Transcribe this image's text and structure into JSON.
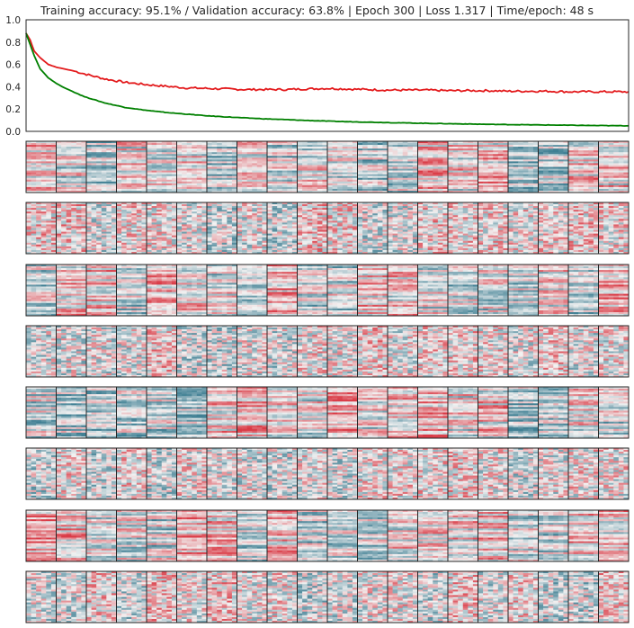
{
  "title": "Training accuracy: 95.1% / Validation accuracy: 63.8% | Epoch 300 | Loss 1.317 | Time/epoch: 48 s",
  "chart_data": [
    {
      "type": "line",
      "title": "",
      "xlabel": "",
      "ylabel": "",
      "xlim": [
        1,
        300
      ],
      "ylim": [
        0.0,
        1.0
      ],
      "y_ticks": [
        "0.0",
        "0.2",
        "0.4",
        "0.6",
        "0.8",
        "1.0"
      ],
      "x_ticks_shown": false,
      "grid": false,
      "legend": "none",
      "series": [
        {
          "color": "#e31a1c",
          "x": [
            1,
            3,
            5,
            8,
            12,
            16,
            20,
            25,
            30,
            40,
            50,
            60,
            70,
            80,
            90,
            100,
            110,
            120,
            130,
            140,
            150,
            160,
            170,
            180,
            190,
            200,
            210,
            220,
            230,
            240,
            250,
            260,
            270,
            280,
            290,
            300
          ],
          "y": [
            0.88,
            0.82,
            0.72,
            0.66,
            0.6,
            0.575,
            0.56,
            0.54,
            0.515,
            0.47,
            0.44,
            0.42,
            0.405,
            0.39,
            0.385,
            0.38,
            0.375,
            0.375,
            0.375,
            0.38,
            0.385,
            0.38,
            0.375,
            0.37,
            0.37,
            0.37,
            0.365,
            0.365,
            0.365,
            0.36,
            0.36,
            0.36,
            0.355,
            0.355,
            0.355,
            0.355
          ]
        },
        {
          "color": "#008000",
          "x": [
            1,
            3,
            5,
            8,
            12,
            16,
            20,
            25,
            30,
            40,
            50,
            60,
            70,
            80,
            90,
            100,
            110,
            120,
            130,
            140,
            150,
            160,
            170,
            180,
            190,
            200,
            210,
            220,
            230,
            240,
            250,
            260,
            270,
            280,
            290,
            300
          ],
          "y": [
            0.88,
            0.78,
            0.68,
            0.56,
            0.48,
            0.43,
            0.39,
            0.35,
            0.31,
            0.255,
            0.215,
            0.19,
            0.17,
            0.155,
            0.14,
            0.13,
            0.12,
            0.112,
            0.105,
            0.098,
            0.092,
            0.087,
            0.083,
            0.079,
            0.075,
            0.072,
            0.069,
            0.066,
            0.063,
            0.061,
            0.059,
            0.057,
            0.055,
            0.053,
            0.051,
            0.05
          ]
        }
      ]
    },
    {
      "type": "heatmap",
      "title": "",
      "colormap": "diverging blue-white-red",
      "colors": {
        "negative": "#3f7f93",
        "neutral": "#f2f2f2",
        "positive": "#da3b46"
      },
      "rows_of_panels": 8,
      "panels_per_row": 20,
      "values": "per-pixel filter weights (not numerically recoverable)"
    }
  ]
}
